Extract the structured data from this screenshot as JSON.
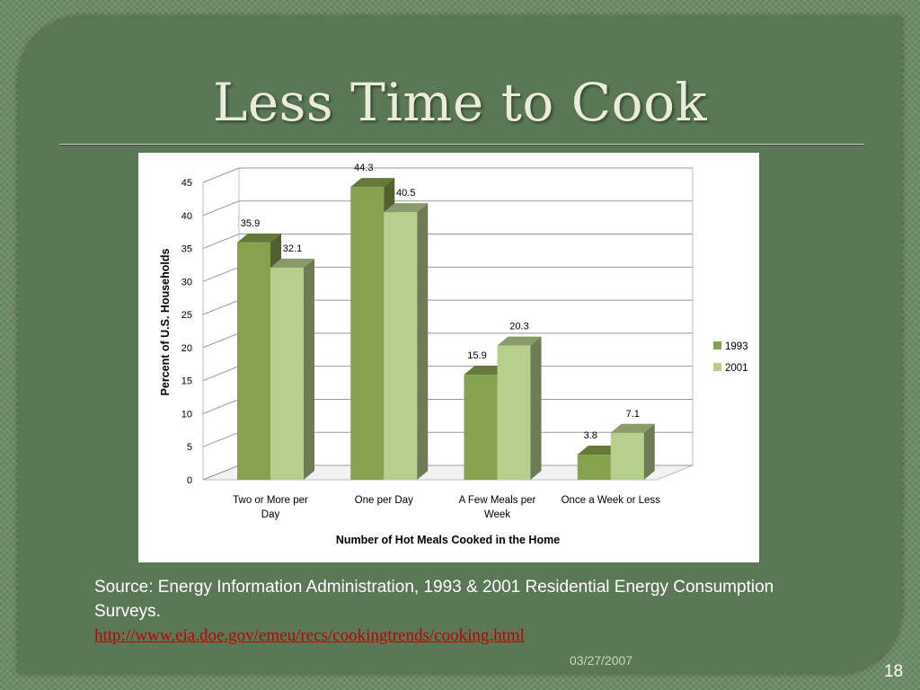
{
  "slide": {
    "title": "Less Time to Cook",
    "source_text": "Source: Energy Information Administration, 1993 & 2001 Residential Energy Consumption Surveys.",
    "source_link": "http://www.eia.doe.gov/emeu/recs/cookingtrends/cooking.html",
    "date": "03/27/2007",
    "slide_number": "18"
  },
  "chart_data": {
    "type": "bar",
    "categories": [
      [
        "Two or More per",
        "Day"
      ],
      [
        "One per Day"
      ],
      [
        "A Few Meals per",
        "Week"
      ],
      [
        "Once a Week or Less"
      ]
    ],
    "series": [
      {
        "name": "1993",
        "values": [
          35.9,
          44.3,
          15.9,
          3.8
        ],
        "color": "#86a24c"
      },
      {
        "name": "2001",
        "values": [
          32.1,
          40.5,
          20.3,
          7.1
        ],
        "color": "#b7cf8d"
      }
    ],
    "xlabel": "Number of Hot Meals Cooked in the Home",
    "ylabel": "Percent of U.S. Households",
    "ylim": [
      0,
      45
    ],
    "yticks": [
      0,
      5,
      10,
      15,
      20,
      25,
      30,
      35,
      40,
      45
    ],
    "grid": true,
    "legend": "right",
    "data_labels": true
  }
}
